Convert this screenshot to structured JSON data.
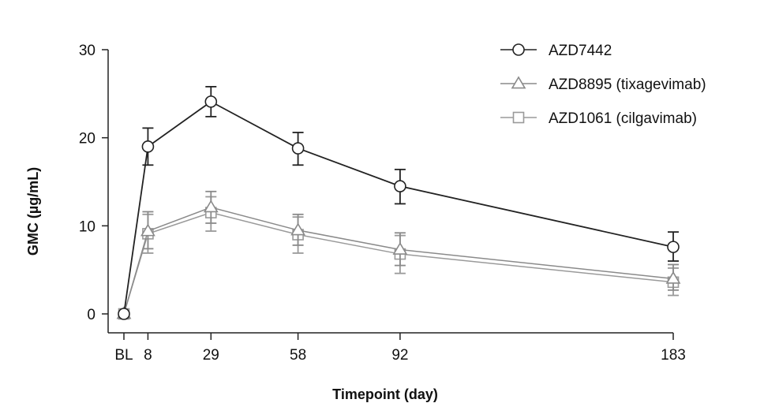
{
  "chart_data": {
    "type": "line",
    "title": "",
    "xlabel": "Timepoint (day)",
    "ylabel": "GMC (µg/mL)",
    "ylim": [
      0,
      30
    ],
    "yticks": [
      0,
      10,
      20,
      30
    ],
    "x_ticks": [
      {
        "label": "BL",
        "value": 0
      },
      {
        "label": "8",
        "value": 8
      },
      {
        "label": "29",
        "value": 29
      },
      {
        "label": "58",
        "value": 58
      },
      {
        "label": "92",
        "value": 92
      },
      {
        "label": "183",
        "value": 183
      }
    ],
    "legend_position": "top-right",
    "grid": false,
    "series": [
      {
        "name": "AZD7442",
        "marker": "circle",
        "color": "#222222",
        "x": [
          0,
          8,
          29,
          58,
          92,
          183
        ],
        "y": [
          0,
          19.0,
          24.1,
          18.8,
          14.5,
          7.6
        ],
        "err_low": [
          0,
          16.9,
          22.4,
          16.9,
          12.5,
          6.0
        ],
        "err_high": [
          0,
          21.1,
          25.8,
          20.6,
          16.4,
          9.3
        ]
      },
      {
        "name": "AZD8895 (tixagevimab)",
        "marker": "triangle",
        "color": "#8a8a8a",
        "x": [
          0,
          8,
          29,
          58,
          92,
          183
        ],
        "y": [
          0,
          9.4,
          12.1,
          9.5,
          7.3,
          4.0
        ],
        "err_low": [
          0,
          7.4,
          10.3,
          7.8,
          5.5,
          2.7
        ],
        "err_high": [
          0,
          11.6,
          13.9,
          11.3,
          9.2,
          5.6
        ]
      },
      {
        "name": "AZD1061 (cilgavimab)",
        "marker": "square",
        "color": "#9a9a9a",
        "x": [
          0,
          8,
          29,
          58,
          92,
          183
        ],
        "y": [
          0,
          9.1,
          11.5,
          9.0,
          6.8,
          3.6
        ],
        "err_low": [
          0,
          6.9,
          9.4,
          6.9,
          4.6,
          2.1
        ],
        "err_high": [
          0,
          11.3,
          13.3,
          11.0,
          8.9,
          5.2
        ]
      }
    ]
  }
}
